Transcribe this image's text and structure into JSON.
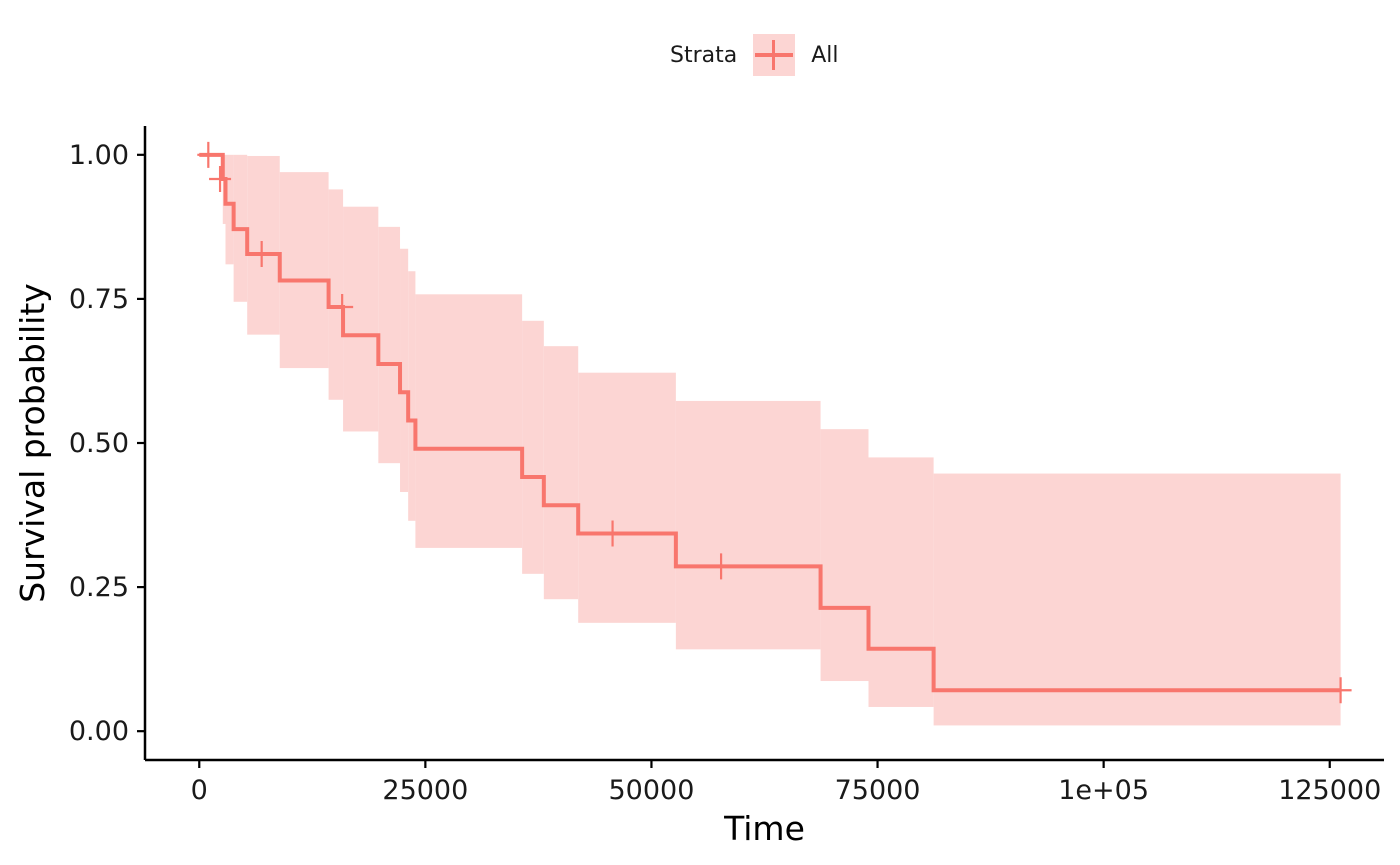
{
  "legend": {
    "title": "Strata",
    "label": "All"
  },
  "colors": {
    "line": "#f8766d",
    "ribbon": "#fcd5d3",
    "axis": "#000000",
    "text": "#1a1a1a"
  },
  "chart_data": {
    "type": "line",
    "subtype": "kaplan-meier step curve with confidence band",
    "xlabel": "Time",
    "ylabel": "Survival probability",
    "xlim": [
      -6000,
      131000
    ],
    "ylim": [
      -0.05,
      1.05
    ],
    "x_ticks": [
      0,
      25000,
      50000,
      75000,
      100000,
      125000
    ],
    "x_tick_labels": [
      "0",
      "25000",
      "50000",
      "75000",
      "1e+05",
      "125000"
    ],
    "y_ticks": [
      0,
      0.25,
      0.5,
      0.75,
      1
    ],
    "y_tick_labels": [
      "0.00",
      "0.25",
      "0.50",
      "0.75",
      "1.00"
    ],
    "grid": false,
    "legend_position": "top",
    "series": [
      {
        "name": "All",
        "steps": [
          {
            "x": 0,
            "y": 1.0,
            "lower": 1.0,
            "upper": 1.0
          },
          {
            "x": 2600,
            "y": 0.958,
            "lower": 0.88,
            "upper": 1.0
          },
          {
            "x": 2900,
            "y": 0.915,
            "lower": 0.81,
            "upper": 1.0
          },
          {
            "x": 3800,
            "y": 0.871,
            "lower": 0.745,
            "upper": 1.0
          },
          {
            "x": 5300,
            "y": 0.828,
            "lower": 0.688,
            "upper": 0.998
          },
          {
            "x": 8900,
            "y": 0.782,
            "lower": 0.63,
            "upper": 0.97
          },
          {
            "x": 14300,
            "y": 0.736,
            "lower": 0.575,
            "upper": 0.94
          },
          {
            "x": 15900,
            "y": 0.687,
            "lower": 0.52,
            "upper": 0.91
          },
          {
            "x": 19800,
            "y": 0.637,
            "lower": 0.465,
            "upper": 0.875
          },
          {
            "x": 22200,
            "y": 0.588,
            "lower": 0.415,
            "upper": 0.837
          },
          {
            "x": 23100,
            "y": 0.539,
            "lower": 0.365,
            "upper": 0.798
          },
          {
            "x": 23900,
            "y": 0.49,
            "lower": 0.318,
            "upper": 0.758
          },
          {
            "x": 35700,
            "y": 0.441,
            "lower": 0.273,
            "upper": 0.712
          },
          {
            "x": 38100,
            "y": 0.392,
            "lower": 0.229,
            "upper": 0.668
          },
          {
            "x": 41900,
            "y": 0.343,
            "lower": 0.188,
            "upper": 0.622
          },
          {
            "x": 52700,
            "y": 0.286,
            "lower": 0.142,
            "upper": 0.573
          },
          {
            "x": 68700,
            "y": 0.214,
            "lower": 0.087,
            "upper": 0.524
          },
          {
            "x": 74000,
            "y": 0.143,
            "lower": 0.042,
            "upper": 0.475
          },
          {
            "x": 81200,
            "y": 0.071,
            "lower": 0.01,
            "upper": 0.447
          },
          {
            "x": 126200,
            "y": 0.071,
            "lower": 0.01,
            "upper": 0.447
          }
        ],
        "censored": [
          {
            "x": 1000,
            "y": 1.0
          },
          {
            "x": 2300,
            "y": 0.958
          },
          {
            "x": 6900,
            "y": 0.828
          },
          {
            "x": 15800,
            "y": 0.736
          },
          {
            "x": 45700,
            "y": 0.343
          },
          {
            "x": 57700,
            "y": 0.286
          },
          {
            "x": 126200,
            "y": 0.071
          }
        ]
      }
    ]
  }
}
